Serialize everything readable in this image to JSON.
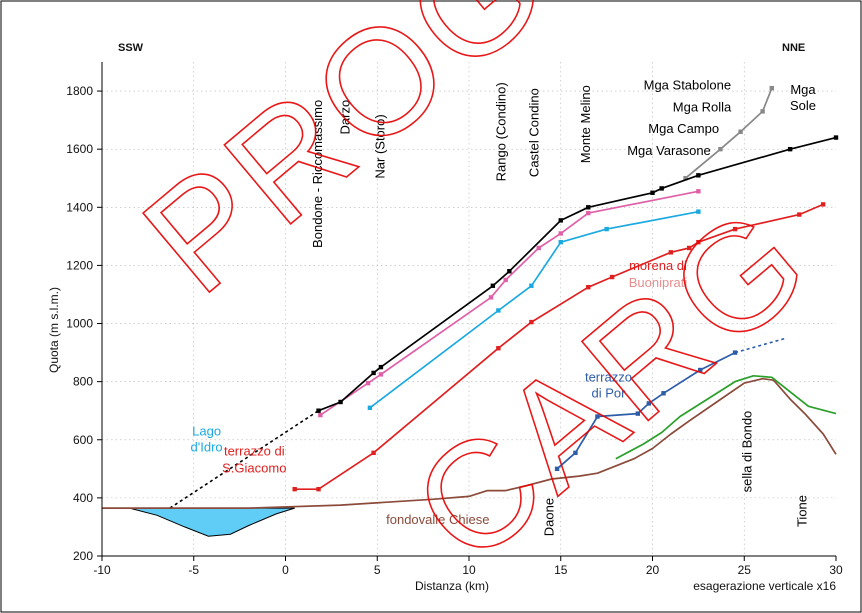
{
  "chart_data": {
    "type": "line",
    "xlabel": "Distanza (km)",
    "ylabel": "Quota (m s.l.m.)",
    "xlim": [
      -10,
      30
    ],
    "ylim": [
      200,
      1900
    ],
    "x_ticks": [
      -10,
      -5,
      0,
      5,
      10,
      15,
      20,
      25,
      30
    ],
    "y_ticks": [
      200,
      400,
      600,
      800,
      1000,
      1200,
      1400,
      1600,
      1800
    ],
    "grid": "dotted",
    "left_direction": "SSW",
    "right_direction": "NNE",
    "footnote": "esagerazione verticale x16",
    "series": [
      {
        "key": "black",
        "color": "#000000",
        "marker": true,
        "points": [
          [
            1.8,
            700
          ],
          [
            3,
            730
          ],
          [
            4.8,
            830
          ],
          [
            5.2,
            850
          ],
          [
            11.3,
            1130
          ],
          [
            12.2,
            1180
          ],
          [
            15,
            1355
          ],
          [
            16.5,
            1400
          ],
          [
            20,
            1450
          ],
          [
            20.5,
            1465
          ],
          [
            22.5,
            1510
          ],
          [
            27.5,
            1600
          ],
          [
            30,
            1640
          ]
        ]
      },
      {
        "key": "pink",
        "color": "#e060a8",
        "marker": true,
        "points": [
          [
            1.9,
            685
          ],
          [
            4.5,
            795
          ],
          [
            5.2,
            825
          ],
          [
            11.2,
            1090
          ],
          [
            12,
            1150
          ],
          [
            13.8,
            1260
          ],
          [
            15,
            1310
          ],
          [
            16.5,
            1380
          ],
          [
            22.5,
            1455
          ]
        ]
      },
      {
        "key": "cyan",
        "color": "#1ba9e1",
        "marker": true,
        "points": [
          [
            4.6,
            710
          ],
          [
            11.6,
            1045
          ],
          [
            13.4,
            1130
          ],
          [
            15,
            1280
          ],
          [
            17.5,
            1325
          ],
          [
            22.5,
            1385
          ]
        ]
      },
      {
        "key": "red",
        "color": "#e02020",
        "marker": true,
        "points": [
          [
            0.5,
            430
          ],
          [
            1.8,
            430
          ],
          [
            4.8,
            555
          ],
          [
            11.6,
            915
          ],
          [
            13.4,
            1005
          ],
          [
            16.5,
            1125
          ],
          [
            17.8,
            1160
          ],
          [
            21,
            1245
          ],
          [
            22,
            1260
          ],
          [
            22.5,
            1280
          ],
          [
            24.5,
            1325
          ],
          [
            28,
            1375
          ],
          [
            29.3,
            1410
          ]
        ]
      },
      {
        "key": "blue",
        "color": "#2e5da8",
        "marker": true,
        "points": [
          [
            14.8,
            500
          ],
          [
            15.8,
            555
          ],
          [
            17,
            680
          ],
          [
            19.2,
            690
          ],
          [
            19.8,
            725
          ],
          [
            20.6,
            760
          ],
          [
            22.6,
            840
          ],
          [
            24.5,
            900
          ]
        ]
      },
      {
        "key": "gray",
        "color": "#888888",
        "marker": true,
        "points": [
          [
            21.8,
            1500
          ],
          [
            23.7,
            1600
          ],
          [
            24.8,
            1660
          ],
          [
            26,
            1730
          ],
          [
            26.5,
            1810
          ]
        ]
      },
      {
        "key": "green",
        "color": "#2aa02a",
        "marker": false,
        "points": [
          [
            18,
            535
          ],
          [
            19.5,
            585
          ],
          [
            20.5,
            625
          ],
          [
            21.5,
            680
          ],
          [
            23,
            740
          ],
          [
            24.5,
            800
          ],
          [
            25.5,
            820
          ],
          [
            26.5,
            815
          ],
          [
            27.5,
            765
          ],
          [
            28.5,
            715
          ],
          [
            30,
            690
          ]
        ]
      },
      {
        "key": "brown",
        "color": "#8b4a3a",
        "marker": false,
        "points": [
          [
            -10,
            365
          ],
          [
            -2,
            365
          ],
          [
            3,
            375
          ],
          [
            8,
            395
          ],
          [
            10,
            405
          ],
          [
            11,
            425
          ],
          [
            12,
            425
          ],
          [
            13,
            440
          ],
          [
            14.5,
            465
          ],
          [
            16,
            475
          ],
          [
            17,
            485
          ],
          [
            19,
            535
          ],
          [
            20,
            570
          ],
          [
            21,
            620
          ],
          [
            22,
            665
          ],
          [
            23.5,
            730
          ],
          [
            25,
            795
          ],
          [
            26,
            810
          ],
          [
            26.6,
            805
          ],
          [
            27.5,
            740
          ],
          [
            28.3,
            690
          ],
          [
            29.3,
            620
          ],
          [
            30,
            550
          ]
        ]
      }
    ],
    "dashed_segments": [
      {
        "key": "black",
        "color": "#000000",
        "points": [
          [
            -6.3,
            365
          ],
          [
            1.8,
            700
          ]
        ]
      },
      {
        "key": "blue",
        "color": "#2e5da8",
        "points": [
          [
            24.5,
            900
          ],
          [
            27.3,
            950
          ]
        ]
      }
    ],
    "lake": {
      "color": "#5fcdf5",
      "top": 365,
      "bottom_points": [
        [
          -8.5,
          365
        ],
        [
          -7,
          340
        ],
        [
          -5.5,
          300
        ],
        [
          -4.2,
          268
        ],
        [
          -3,
          275
        ],
        [
          -2,
          305
        ],
        [
          -0.5,
          345
        ],
        [
          0.5,
          365
        ]
      ]
    },
    "annotations": [
      {
        "text": "Bondone - Riccomassimo",
        "x": 2.0,
        "y": 1770,
        "color": "#000",
        "rotate": true
      },
      {
        "text": "Darzo",
        "x": 3.5,
        "y": 1770,
        "color": "#000",
        "rotate": true
      },
      {
        "text": "Nar (Storo)",
        "x": 5.4,
        "y": 1720,
        "color": "#000",
        "rotate": true
      },
      {
        "text": "Rango (Condino)",
        "x": 12,
        "y": 1830,
        "color": "#000",
        "rotate": true
      },
      {
        "text": "Castel Condino",
        "x": 13.8,
        "y": 1810,
        "color": "#000",
        "rotate": true
      },
      {
        "text": "Monte Melino",
        "x": 16.6,
        "y": 1820,
        "color": "#000",
        "rotate": true
      },
      {
        "text": "Mga Stabolone",
        "x": 21.9,
        "y": 1805,
        "color": "#000",
        "rotate": false
      },
      {
        "text": "Mga Rolla",
        "x": 22.7,
        "y": 1730,
        "color": "#000",
        "rotate": false
      },
      {
        "text": "Mga Campo",
        "x": 21.7,
        "y": 1655,
        "color": "#000",
        "rotate": false
      },
      {
        "text": "Mga Varasone",
        "x": 20.9,
        "y": 1580,
        "color": "#000",
        "rotate": false
      },
      {
        "text": "Mga",
        "x": 28.2,
        "y": 1790,
        "color": "#000",
        "rotate": false
      },
      {
        "text": "Sole",
        "x": 28.2,
        "y": 1735,
        "color": "#000",
        "rotate": false
      },
      {
        "text": "morena di",
        "x": 20.3,
        "y": 1185,
        "color": "#e02020",
        "rotate": false
      },
      {
        "text": "Buoniprati",
        "x": 20.3,
        "y": 1125,
        "color": "#e78f8f",
        "rotate": false
      },
      {
        "text": "terrazzo",
        "x": 17.6,
        "y": 800,
        "color": "#2e5da8",
        "rotate": false
      },
      {
        "text": "di Por",
        "x": 17.6,
        "y": 745,
        "color": "#2e5da8",
        "rotate": false
      },
      {
        "text": "Lago",
        "x": -4.3,
        "y": 615,
        "color": "#1ba9e1",
        "rotate": false
      },
      {
        "text": "d'Idro",
        "x": -4.3,
        "y": 560,
        "color": "#1ba9e1",
        "rotate": false
      },
      {
        "text": "terrazzo di",
        "x": -1.7,
        "y": 545,
        "color": "#e02020",
        "rotate": false
      },
      {
        "text": "S.Giacomo",
        "x": -1.7,
        "y": 488,
        "color": "#e02020",
        "rotate": false
      },
      {
        "text": "fondovalle Chiese",
        "x": 8.3,
        "y": 310,
        "color": "#8b4a3a",
        "rotate": false
      },
      {
        "text": "Daone",
        "x": 14.6,
        "y": 400,
        "color": "#000",
        "rotate": true
      },
      {
        "text": "sella di Bondo",
        "x": 25.4,
        "y": 700,
        "color": "#000",
        "rotate": true
      },
      {
        "text": "Tione",
        "x": 28.4,
        "y": 410,
        "color": "#000",
        "rotate": true
      }
    ],
    "watermark": [
      "PROGETTO",
      "CARG"
    ]
  }
}
